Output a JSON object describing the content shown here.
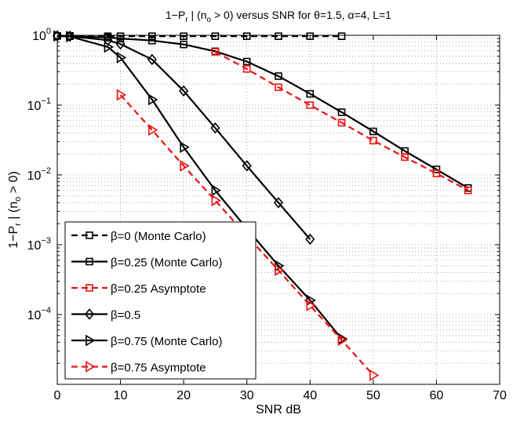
{
  "chart_data": {
    "type": "line",
    "title": "1−P_r | (n_o > 0) versus SNR for θ=1.5, α=4,  L=1",
    "xlabel": "SNR dB",
    "ylabel": "1−P_r | (n_o > 0)",
    "xlim": [
      0,
      70
    ],
    "ylim_log10": [
      -5,
      0
    ],
    "yscale": "log",
    "grid": true,
    "legend_position": "bottom-left",
    "x_ticks": [
      "0",
      "10",
      "20",
      "30",
      "40",
      "50",
      "60",
      "70"
    ],
    "y_ticks": [
      {
        "base": "10",
        "exp": "0",
        "pow": 0
      },
      {
        "base": "10",
        "exp": "−1",
        "pow": -1
      },
      {
        "base": "10",
        "exp": "−2",
        "pow": -2
      },
      {
        "base": "10",
        "exp": "−3",
        "pow": -3
      },
      {
        "base": "10",
        "exp": "−4",
        "pow": -4
      }
    ],
    "series": [
      {
        "name": "β=0 (Monte Carlo)",
        "color": "#000000",
        "dash": true,
        "marker": "square",
        "x": [
          0,
          2,
          8,
          10,
          15,
          20,
          25,
          30,
          35,
          40,
          45
        ],
        "y": [
          0.98,
          0.98,
          0.97,
          0.97,
          0.97,
          0.97,
          0.97,
          0.97,
          0.97,
          0.97,
          0.97
        ]
      },
      {
        "name": "β=0.25 (Monte Carlo)",
        "color": "#000000",
        "dash": false,
        "marker": "square",
        "x": [
          0,
          2,
          8,
          10,
          15,
          20,
          25,
          30,
          35,
          40,
          45,
          50,
          55,
          60,
          65
        ],
        "y": [
          0.98,
          0.97,
          0.93,
          0.9,
          0.84,
          0.74,
          0.59,
          0.42,
          0.26,
          0.145,
          0.079,
          0.042,
          0.022,
          0.012,
          0.0065
        ]
      },
      {
        "name": "β=0.25 Asymptote",
        "color": "#ee1111",
        "dash": true,
        "marker": "square",
        "x": [
          25,
          30,
          35,
          40,
          45,
          50,
          55,
          60,
          65
        ],
        "y": [
          0.58,
          0.33,
          0.18,
          0.1,
          0.056,
          0.031,
          0.018,
          0.0105,
          0.006
        ]
      },
      {
        "name": "β=0.5",
        "color": "#000000",
        "dash": false,
        "marker": "diamond",
        "x": [
          0,
          2,
          8,
          10,
          15,
          20,
          25,
          30,
          35,
          40
        ],
        "y": [
          0.98,
          0.97,
          0.85,
          0.75,
          0.45,
          0.16,
          0.047,
          0.0135,
          0.004,
          0.0012
        ]
      },
      {
        "name": "β=0.75 (Monte Carlo)",
        "color": "#000000",
        "dash": false,
        "marker": "triangle-right",
        "x": [
          0,
          2,
          8,
          10,
          15,
          20,
          25,
          30,
          35,
          40,
          45
        ],
        "y": [
          0.98,
          0.96,
          0.68,
          0.48,
          0.12,
          0.025,
          0.006,
          0.0017,
          0.0005,
          0.00016,
          4.5e-05
        ]
      },
      {
        "name": "β=0.75  Asymptote",
        "color": "#ee1111",
        "dash": true,
        "marker": "triangle-right",
        "x": [
          10,
          15,
          20,
          25,
          30,
          35,
          40,
          45,
          50
        ],
        "y": [
          0.14,
          0.044,
          0.0135,
          0.0043,
          0.00135,
          0.00043,
          0.000135,
          4.3e-05,
          1.35e-05
        ]
      }
    ]
  }
}
